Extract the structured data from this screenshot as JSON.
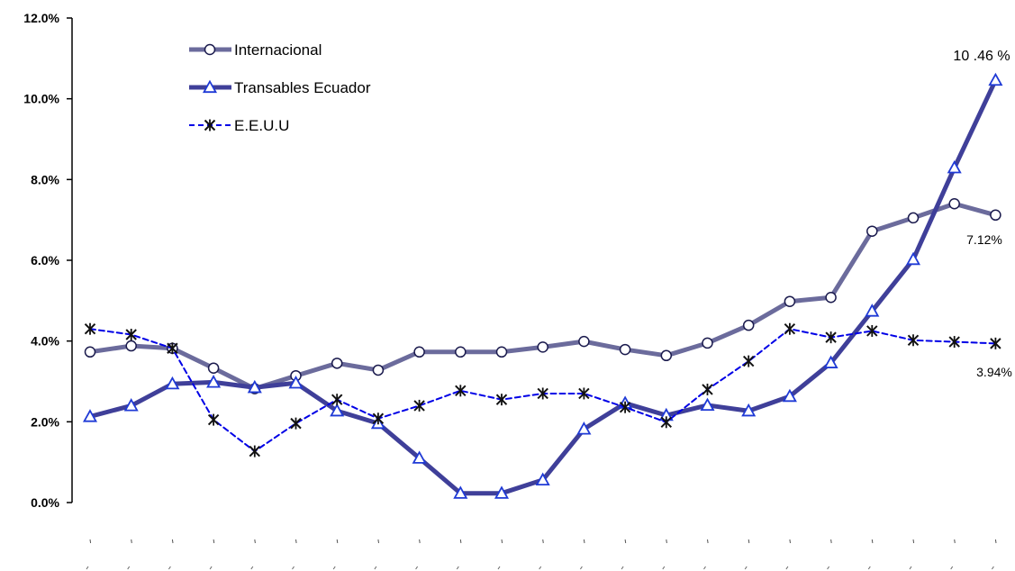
{
  "chart_data": {
    "type": "line",
    "title": "",
    "xlabel": "",
    "ylabel": "",
    "ylim": [
      0,
      12
    ],
    "yticks": [
      "0.0%",
      "2.0%",
      "4.0%",
      "6.0%",
      "8.0%",
      "10.0%",
      "12.0%"
    ],
    "ytick_values": [
      0,
      2,
      4,
      6,
      8,
      10,
      12
    ],
    "categories": [
      "",
      "",
      "",
      "",
      "",
      "",
      "",
      "",
      "",
      "",
      "",
      "",
      "",
      "",
      "",
      "",
      "",
      "",
      "",
      "",
      "",
      "",
      ""
    ],
    "grid": false,
    "legend_position": "top-left",
    "series": [
      {
        "name": "Internacional",
        "color": "#6b6b9c",
        "marker": "circle",
        "dash": "solid",
        "values": [
          3.73,
          3.88,
          3.82,
          3.33,
          2.82,
          3.14,
          3.45,
          3.28,
          3.73,
          3.73,
          3.73,
          3.85,
          3.99,
          3.79,
          3.64,
          3.95,
          4.39,
          4.98,
          5.08,
          6.72,
          7.05,
          7.4,
          7.12
        ]
      },
      {
        "name": "Transables Ecuador",
        "color": "#3f3f99",
        "marker": "triangle",
        "dash": "solid",
        "values": [
          2.13,
          2.4,
          2.94,
          2.98,
          2.85,
          2.96,
          2.27,
          1.96,
          1.1,
          0.23,
          0.23,
          0.56,
          1.82,
          2.46,
          2.16,
          2.41,
          2.27,
          2.63,
          3.46,
          4.74,
          6.02,
          8.29,
          10.46
        ]
      },
      {
        "name": "E.E.U.U",
        "color": "#0000e6",
        "marker": "star",
        "dash": "dashed",
        "values": [
          4.3,
          4.16,
          3.82,
          2.05,
          1.27,
          1.96,
          2.55,
          2.08,
          2.4,
          2.77,
          2.55,
          2.7,
          2.7,
          2.36,
          1.99,
          2.8,
          3.5,
          4.3,
          4.09,
          4.25,
          4.02,
          3.98,
          3.94
        ]
      }
    ],
    "annotations": [
      {
        "text": "10 .46 %",
        "series": "Transables Ecuador",
        "index": 22
      },
      {
        "text": "7.12%",
        "series": "Internacional",
        "index": 22
      },
      {
        "text": "3.94%",
        "series": "E.E.U.U",
        "index": 22
      }
    ]
  }
}
